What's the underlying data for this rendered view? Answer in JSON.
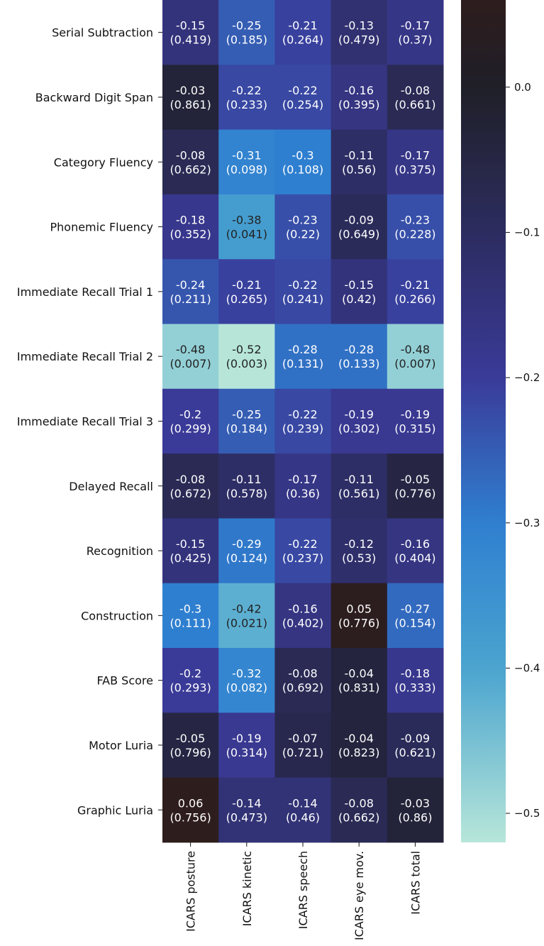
{
  "chart_data": {
    "type": "heatmap",
    "title": "",
    "rows": [
      "Serial Subtraction",
      "Backward Digit Span",
      "Category Fluency",
      "Phonemic Fluency",
      "Immediate Recall Trial 1",
      "Immediate Recall Trial 2",
      "Immediate Recall  Trial 3",
      "Delayed Recall",
      "Recognition",
      "Construction",
      "FAB Score",
      "Motor Luria",
      "Graphic Luria"
    ],
    "columns": [
      "ICARS posture",
      "ICARS kinetic",
      "ICARS speech",
      "ICARS eye mov.",
      "ICARS total"
    ],
    "values": [
      [
        -0.15,
        -0.25,
        -0.21,
        -0.13,
        -0.17
      ],
      [
        -0.03,
        -0.22,
        -0.22,
        -0.16,
        -0.08
      ],
      [
        -0.08,
        -0.31,
        -0.3,
        -0.11,
        -0.17
      ],
      [
        -0.18,
        -0.38,
        -0.23,
        -0.09,
        -0.23
      ],
      [
        -0.24,
        -0.21,
        -0.22,
        -0.15,
        -0.21
      ],
      [
        -0.48,
        -0.52,
        -0.28,
        -0.28,
        -0.48
      ],
      [
        -0.2,
        -0.25,
        -0.22,
        -0.19,
        -0.19
      ],
      [
        -0.08,
        -0.11,
        -0.17,
        -0.11,
        -0.05
      ],
      [
        -0.15,
        -0.29,
        -0.22,
        -0.12,
        -0.16
      ],
      [
        -0.3,
        -0.42,
        -0.16,
        0.05,
        -0.27
      ],
      [
        -0.2,
        -0.32,
        -0.08,
        -0.04,
        -0.18
      ],
      [
        -0.05,
        -0.19,
        -0.07,
        -0.04,
        -0.09
      ],
      [
        0.06,
        -0.14,
        -0.14,
        -0.08,
        -0.03
      ]
    ],
    "p_values": [
      [
        "(0.419)",
        "(0.185)",
        "(0.264)",
        "(0.479)",
        "(0.37)"
      ],
      [
        "(0.861)",
        "(0.233)",
        "(0.254)",
        "(0.395)",
        "(0.661)"
      ],
      [
        "(0.662)",
        "(0.098)",
        "(0.108)",
        "(0.56)",
        "(0.375)"
      ],
      [
        "(0.352)",
        "(0.041)",
        "(0.22)",
        "(0.649)",
        "(0.228)"
      ],
      [
        "(0.211)",
        "(0.265)",
        "(0.241)",
        "(0.42)",
        "(0.266)"
      ],
      [
        "(0.007)",
        "(0.003)",
        "(0.131)",
        "(0.133)",
        "(0.007)"
      ],
      [
        "(0.299)",
        "(0.184)",
        "(0.239)",
        "(0.302)",
        "(0.315)"
      ],
      [
        "(0.672)",
        "(0.578)",
        "(0.36)",
        "(0.561)",
        "(0.776)"
      ],
      [
        "(0.425)",
        "(0.124)",
        "(0.237)",
        "(0.53)",
        "(0.404)"
      ],
      [
        "(0.111)",
        "(0.021)",
        "(0.402)",
        "(0.776)",
        "(0.154)"
      ],
      [
        "(0.293)",
        "(0.082)",
        "(0.692)",
        "(0.831)",
        "(0.333)"
      ],
      [
        "(0.796)",
        "(0.314)",
        "(0.721)",
        "(0.823)",
        "(0.621)"
      ],
      [
        "(0.756)",
        "(0.473)",
        "(0.46)",
        "(0.662)",
        "(0.86)"
      ]
    ],
    "colorbar": {
      "vmin": -0.52,
      "vmax": 0.06,
      "ticks": [
        0.0,
        -0.1,
        -0.2,
        -0.3,
        -0.4,
        -0.5
      ],
      "tick_labels": [
        "0.0",
        "−0.1",
        "−0.2",
        "−0.3",
        "−0.4",
        "−0.5"
      ]
    },
    "colors": {
      "high": "#2e1d1d",
      "center": "#1f1f28",
      "purple": "#3a3a98",
      "blue": "#2f7fd0",
      "light_blue": "#4aa4cf",
      "low": "#b7e6d9",
      "text_light": "#ffffff",
      "text_dark": "#222222"
    }
  }
}
